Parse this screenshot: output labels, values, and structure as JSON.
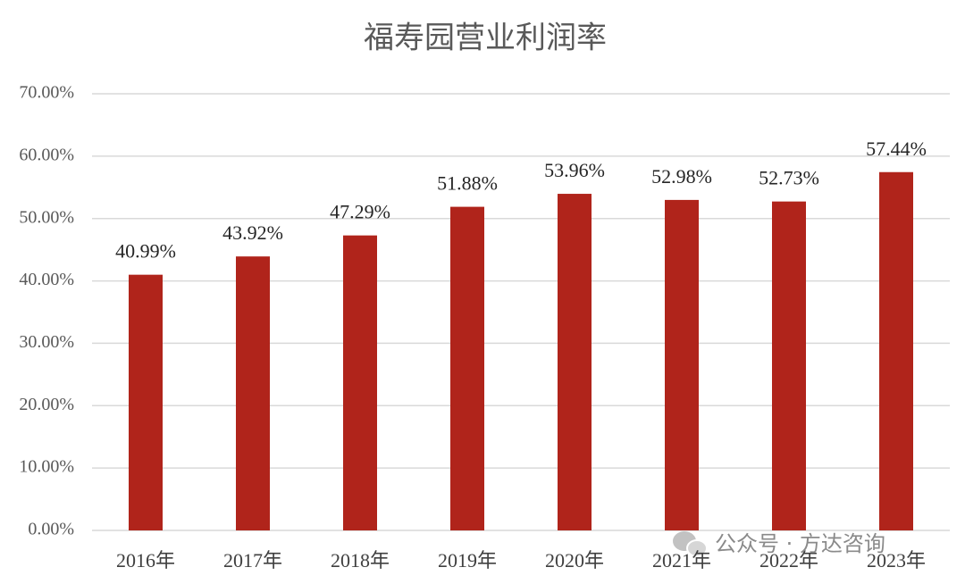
{
  "chart_data": {
    "type": "bar",
    "title": "福寿园营业利润率",
    "categories": [
      "2016年",
      "2017年",
      "2018年",
      "2019年",
      "2020年",
      "2021年",
      "2022年",
      "2023年"
    ],
    "values": [
      40.99,
      43.92,
      47.29,
      51.88,
      53.96,
      52.98,
      52.73,
      57.44
    ],
    "value_labels": [
      "40.99%",
      "43.92%",
      "47.29%",
      "51.88%",
      "53.96%",
      "52.98%",
      "52.73%",
      "57.44%"
    ],
    "color": "#b0241b",
    "ylim": [
      0,
      70
    ],
    "yticks": [
      {
        "value": 0,
        "label": "0.00%"
      },
      {
        "value": 10,
        "label": "10.00%"
      },
      {
        "value": 20,
        "label": "20.00%"
      },
      {
        "value": 30,
        "label": "30.00%"
      },
      {
        "value": 40,
        "label": "40.00%"
      },
      {
        "value": 50,
        "label": "50.00%"
      },
      {
        "value": 60,
        "label": "60.00%"
      },
      {
        "value": 70,
        "label": "70.00%"
      }
    ],
    "grid": true,
    "watermark": "公众号 · 方达咨询"
  }
}
